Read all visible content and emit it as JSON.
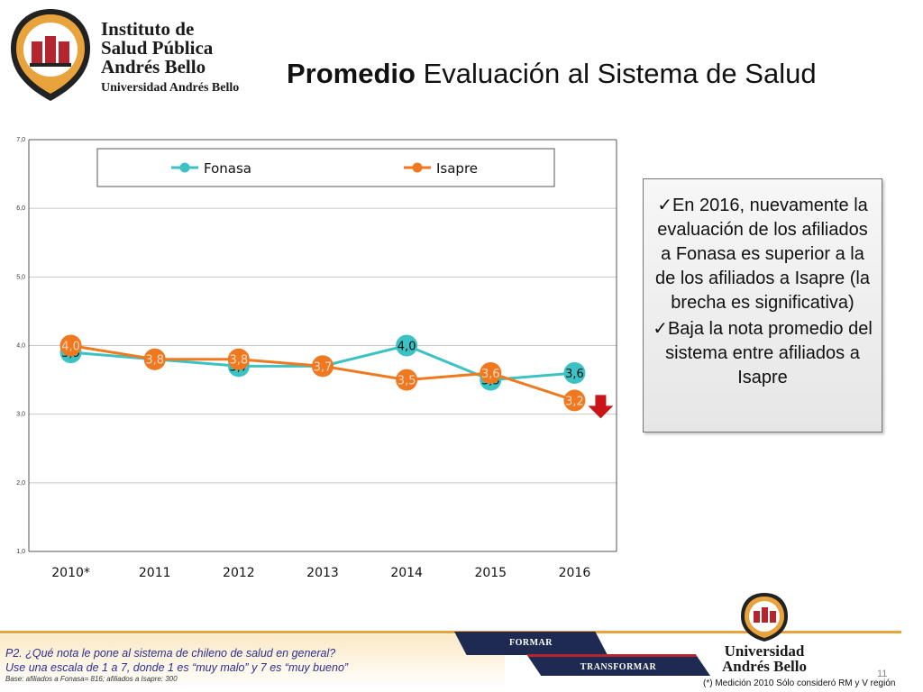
{
  "logo": {
    "line1": "Instituto de",
    "line2": "Salud Pública",
    "line3": "Andrés Bello",
    "line4": "Universidad Andrés Bello"
  },
  "title": {
    "bold": "Promedio",
    "rest": " Evaluación al Sistema de Salud"
  },
  "chart_data": {
    "type": "line",
    "categories": [
      "2010*",
      "2011",
      "2012",
      "2013",
      "2014",
      "2015",
      "2016"
    ],
    "series": [
      {
        "name": "Fonasa",
        "color": "#3cc2c2",
        "values": [
          3.9,
          3.8,
          3.7,
          3.7,
          4.0,
          3.5,
          3.6
        ],
        "labels": [
          "3,9",
          "3,8",
          "3,7",
          "3,7",
          "4,0",
          "3,5",
          "3,6"
        ]
      },
      {
        "name": "Isapre",
        "color": "#f0781e",
        "values": [
          4.0,
          3.8,
          3.8,
          3.7,
          3.5,
          3.6,
          3.2
        ],
        "labels": [
          "4,0",
          "3,8",
          "3,8",
          "3,7",
          "3,5",
          "3,6",
          "3,2"
        ]
      }
    ],
    "yticks": [
      "1,0",
      "2,0",
      "3,0",
      "4,0",
      "5,0",
      "6,0",
      "7,0"
    ],
    "ylim": [
      1,
      7
    ],
    "grid": true,
    "legend": "top"
  },
  "note": {
    "items": [
      "✓En 2016, nuevamente la evaluación de los afiliados a Fonasa es superior a la de los afiliados a Isapre (la brecha es significativa)",
      "✓Baja la nota promedio del sistema entre afiliados a Isapre"
    ]
  },
  "footer": {
    "question_line1": "P2. ¿Qué nota le pone al sistema de chileno de salud en general?",
    "question_line2": "Use una escala de 1 a 7, donde 1 es “muy malo” y 7 es “muy bueno”",
    "base": "Base: afiliados a Fonasa= 816; afiliados a Isapre: 300",
    "tag1": "FORMAR",
    "tag2": "TRANSFORMAR",
    "ub_line1": "Universidad",
    "ub_line2": "Andrés Bello",
    "page": "11",
    "footnote": "(*) Medición 2010 Sólo consideró RM y V región"
  },
  "colors": {
    "brand_red": "#b3262d",
    "navy": "#1e2a52",
    "gold": "#e8a33d",
    "down_arrow": "#c9141a"
  }
}
